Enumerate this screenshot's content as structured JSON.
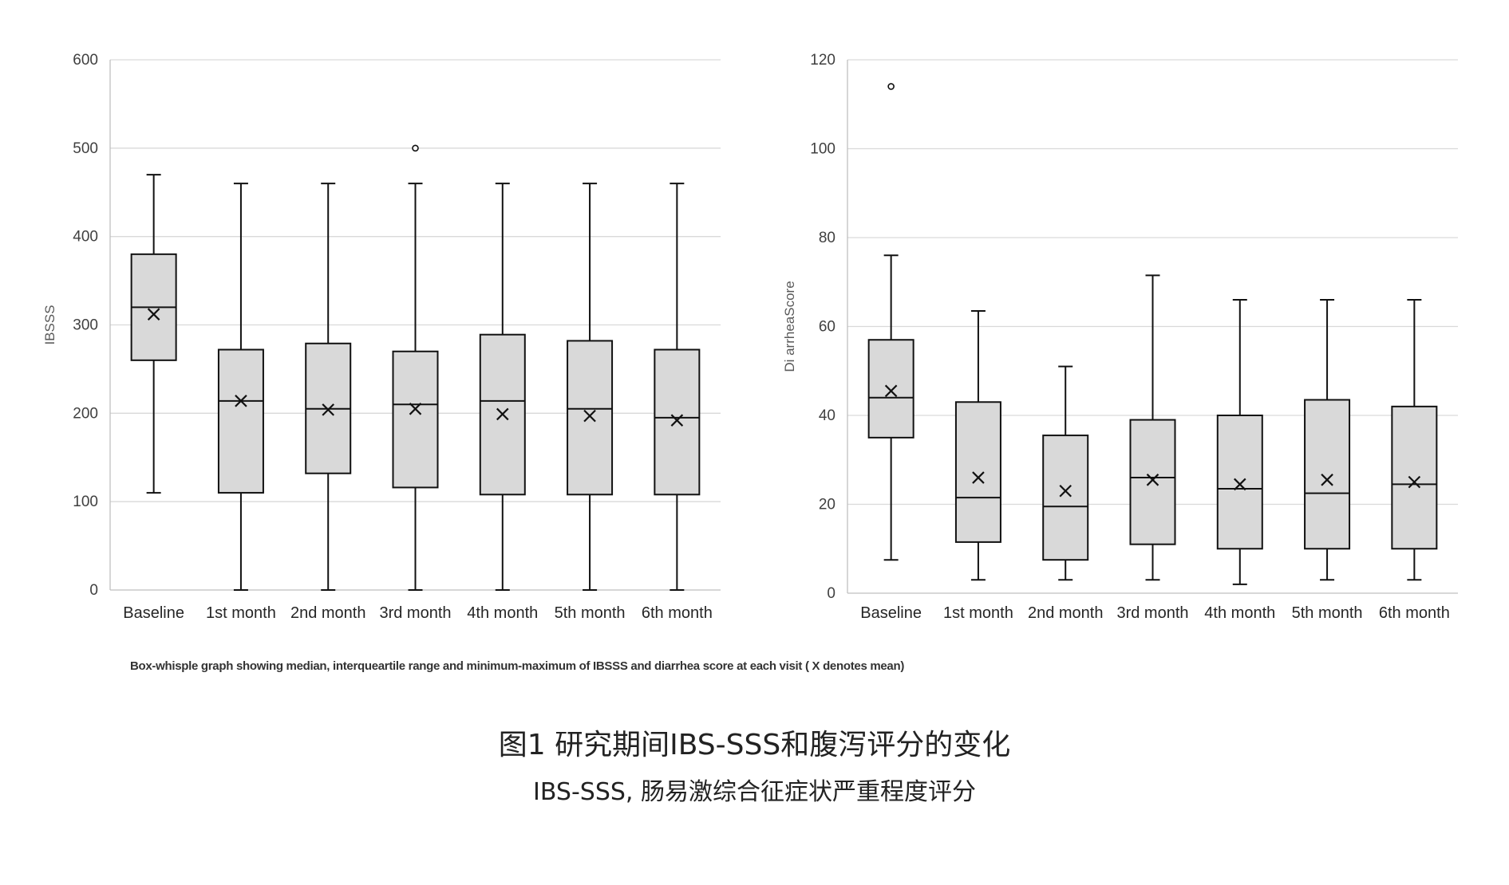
{
  "chart_data": [
    {
      "type": "box",
      "ylabel": "IBSSS",
      "ylim": [
        0,
        600
      ],
      "yticks": [
        0,
        100,
        200,
        300,
        400,
        500,
        600
      ],
      "grid": true,
      "categories": [
        "Baseline",
        "1st month",
        "2nd month",
        "3rd month",
        "4th month",
        "5th month",
        "6th month"
      ],
      "boxes": [
        {
          "min": 110,
          "q1": 260,
          "median": 320,
          "q3": 380,
          "max": 470,
          "mean": 312,
          "outliers": []
        },
        {
          "min": 0,
          "q1": 110,
          "median": 214,
          "q3": 272,
          "max": 460,
          "mean": 214,
          "outliers": []
        },
        {
          "min": 0,
          "q1": 132,
          "median": 205,
          "q3": 279,
          "max": 460,
          "mean": 204,
          "outliers": []
        },
        {
          "min": 0,
          "q1": 116,
          "median": 210,
          "q3": 270,
          "max": 460,
          "mean": 205,
          "outliers": [
            500
          ]
        },
        {
          "min": 0,
          "q1": 108,
          "median": 214,
          "q3": 289,
          "max": 460,
          "mean": 199,
          "outliers": []
        },
        {
          "min": 0,
          "q1": 108,
          "median": 205,
          "q3": 282,
          "max": 460,
          "mean": 197,
          "outliers": []
        },
        {
          "min": 0,
          "q1": 108,
          "median": 195,
          "q3": 272,
          "max": 460,
          "mean": 192,
          "outliers": []
        }
      ]
    },
    {
      "type": "box",
      "ylabel": "Di arrheaScore",
      "ylim": [
        0,
        120
      ],
      "yticks": [
        0,
        20,
        40,
        60,
        80,
        100,
        120
      ],
      "grid": true,
      "categories": [
        "Baseline",
        "1st month",
        "2nd month",
        "3rd month",
        "4th month",
        "5th month",
        "6th month"
      ],
      "boxes": [
        {
          "min": 7.5,
          "q1": 35,
          "median": 44,
          "q3": 57,
          "max": 76,
          "mean": 45.5,
          "outliers": [
            114
          ]
        },
        {
          "min": 3,
          "q1": 11.5,
          "median": 21.5,
          "q3": 43,
          "max": 63.5,
          "mean": 26,
          "outliers": []
        },
        {
          "min": 3,
          "q1": 7.5,
          "median": 19.5,
          "q3": 35.5,
          "max": 51,
          "mean": 23,
          "outliers": []
        },
        {
          "min": 3,
          "q1": 11,
          "median": 26,
          "q3": 39,
          "max": 71.5,
          "mean": 25.5,
          "outliers": []
        },
        {
          "min": 2,
          "q1": 10,
          "median": 23.5,
          "q3": 40,
          "max": 66,
          "mean": 24.5,
          "outliers": []
        },
        {
          "min": 3,
          "q1": 10,
          "median": 22.5,
          "q3": 43.5,
          "max": 66,
          "mean": 25.5,
          "outliers": []
        },
        {
          "min": 3,
          "q1": 10,
          "median": 24.5,
          "q3": 42,
          "max": 66,
          "mean": 25,
          "outliers": []
        }
      ]
    }
  ],
  "caption_note": "Box-whisple graph showing median, interqueartile range and minimum-maximum of IBSSS and diarrhea score at each visit ( X denotes mean)",
  "figure_title": "图1 研究期间IBS-SSS和腹泻评分的变化",
  "figure_subtitle": "IBS-SSS, 肠易激综合征症状严重程度评分",
  "colors": {
    "box_fill": "#d9d9d9",
    "box_stroke": "#111111",
    "grid": "#d9d9d9",
    "axis": "#bfbfbf"
  }
}
